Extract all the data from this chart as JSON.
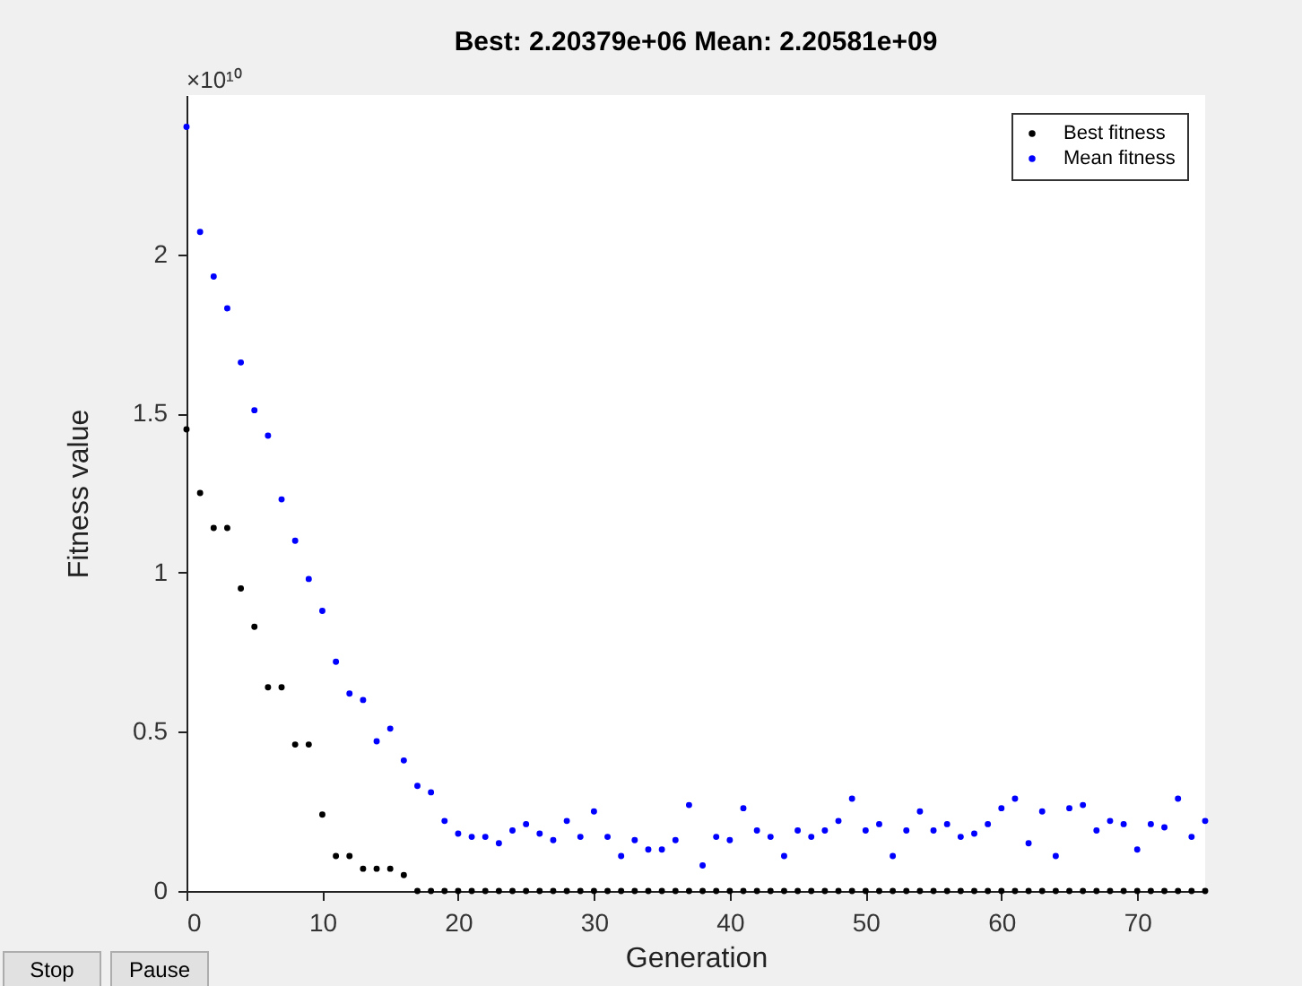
{
  "chart_data": {
    "type": "scatter",
    "title": "Best: 2.20379e+06 Mean: 2.20581e+09",
    "xlabel": "Generation",
    "ylabel": "Fitness value",
    "annotations": [
      "×10¹⁰",
      "Stop",
      "Pause"
    ],
    "x": [
      0,
      1,
      2,
      3,
      4,
      5,
      6,
      7,
      8,
      9,
      10,
      11,
      12,
      13,
      14,
      15,
      16,
      17,
      18,
      19,
      20,
      21,
      22,
      23,
      24,
      25,
      26,
      27,
      28,
      29,
      30,
      31,
      32,
      33,
      34,
      35,
      36,
      37,
      38,
      39,
      40,
      41,
      42,
      43,
      44,
      45,
      46,
      47,
      48,
      49,
      50,
      51,
      52,
      53,
      54,
      55,
      56,
      57,
      58,
      59,
      60,
      61,
      62,
      63,
      64,
      65,
      66,
      67,
      68,
      69,
      70,
      71,
      72,
      73,
      74,
      75
    ],
    "series": [
      {
        "name": "Best fitness",
        "color": "#000000",
        "values": [
          1.45,
          1.25,
          1.14,
          1.14,
          0.95,
          0.83,
          0.64,
          0.64,
          0.46,
          0.46,
          0.24,
          0.11,
          0.11,
          0.07,
          0.07,
          0.07,
          0.05,
          0,
          0,
          0,
          0,
          0,
          0,
          0,
          0,
          0,
          0,
          0,
          0,
          0,
          0,
          0,
          0,
          0,
          0,
          0,
          0,
          0,
          0,
          0,
          0,
          0,
          0,
          0,
          0,
          0,
          0,
          0,
          0,
          0,
          0,
          0,
          0,
          0,
          0,
          0,
          0,
          0,
          0,
          0,
          0,
          0,
          0,
          0,
          0,
          0,
          0,
          0,
          0,
          0,
          0,
          0,
          0,
          0,
          0,
          0
        ]
      },
      {
        "name": "Mean fitness",
        "color": "#0000ff",
        "values": [
          2.4,
          2.07,
          1.93,
          1.83,
          1.66,
          1.51,
          1.43,
          1.23,
          1.1,
          0.98,
          0.88,
          0.72,
          0.62,
          0.6,
          0.47,
          0.51,
          0.41,
          0.33,
          0.31,
          0.22,
          0.18,
          0.17,
          0.17,
          0.15,
          0.19,
          0.21,
          0.18,
          0.16,
          0.22,
          0.17,
          0.25,
          0.17,
          0.11,
          0.16,
          0.13,
          0.13,
          0.16,
          0.27,
          0.08,
          0.17,
          0.16,
          0.26,
          0.19,
          0.17,
          0.11,
          0.19,
          0.17,
          0.19,
          0.22,
          0.29,
          0.19,
          0.21,
          0.11,
          0.19,
          0.25,
          0.19,
          0.21,
          0.17,
          0.18,
          0.21,
          0.26,
          0.29,
          0.15,
          0.25,
          0.11,
          0.26,
          0.27,
          0.19,
          0.22,
          0.21,
          0.13,
          0.21,
          0.2,
          0.29,
          0.17,
          0.22
        ]
      }
    ],
    "xlim": [
      0,
      75
    ],
    "xticks": [
      0,
      10,
      20,
      30,
      40,
      50,
      60,
      70
    ],
    "ylim": [
      0,
      2.5
    ],
    "yticks": [
      0,
      0.5,
      1,
      1.5,
      2
    ],
    "marker": "circle",
    "legend": "top right",
    "grid": false
  }
}
